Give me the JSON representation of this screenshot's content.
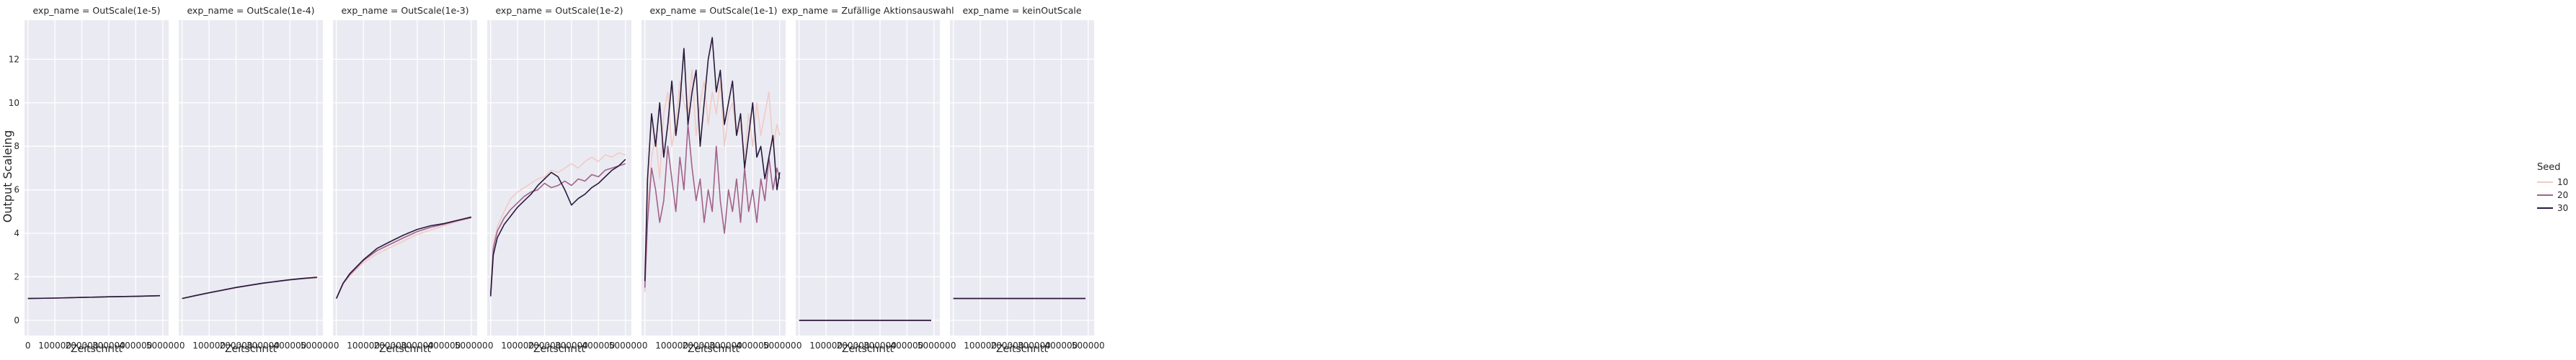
{
  "chart_data": {
    "type": "line",
    "ylabel": "Output Scaleing",
    "xlabel": "Zeitschritt",
    "xlim": [
      -12500,
      522000
    ],
    "ylim": [
      -0.7,
      13.8
    ],
    "x_ticks": [
      0,
      100000,
      200000,
      300000,
      400000,
      500000
    ],
    "x_tick_labels": [
      "0",
      "100000",
      "200000",
      "300000",
      "400000",
      "500000"
    ],
    "y_ticks": [
      0,
      2,
      4,
      6,
      8,
      10,
      12
    ],
    "y_tick_labels": [
      "0",
      "2",
      "4",
      "6",
      "8",
      "10",
      "12"
    ],
    "grid": true,
    "legend": {
      "title": "Seed",
      "placement": "right",
      "entries": [
        {
          "label": "10",
          "color": "#f0cbc6"
        },
        {
          "label": "20",
          "color": "#a2628a"
        },
        {
          "label": "30",
          "color": "#2a1a3d"
        }
      ]
    },
    "panels": [
      {
        "title": "exp_name = OutScale(1e-5)",
        "series": [
          {
            "name": "10",
            "x": [
              0,
              100000,
              200000,
              300000,
              400000,
              490000
            ],
            "y": [
              1.0,
              1.02,
              1.05,
              1.08,
              1.1,
              1.13
            ]
          },
          {
            "name": "20",
            "x": [
              0,
              100000,
              200000,
              300000,
              400000,
              490000
            ],
            "y": [
              1.0,
              1.02,
              1.05,
              1.08,
              1.1,
              1.13
            ]
          },
          {
            "name": "30",
            "x": [
              0,
              100000,
              200000,
              300000,
              400000,
              490000
            ],
            "y": [
              1.0,
              1.02,
              1.05,
              1.08,
              1.1,
              1.13
            ]
          }
        ]
      },
      {
        "title": "exp_name = OutScale(1e-4)",
        "series": [
          {
            "name": "10",
            "x": [
              0,
              50000,
              100000,
              150000,
              200000,
              250000,
              300000,
              350000,
              400000,
              450000,
              500000
            ],
            "y": [
              1.0,
              1.13,
              1.26,
              1.38,
              1.5,
              1.6,
              1.7,
              1.78,
              1.86,
              1.92,
              1.96
            ]
          },
          {
            "name": "20",
            "x": [
              0,
              50000,
              100000,
              150000,
              200000,
              250000,
              300000,
              350000,
              400000,
              450000,
              500000
            ],
            "y": [
              1.0,
              1.13,
              1.26,
              1.38,
              1.5,
              1.6,
              1.7,
              1.78,
              1.86,
              1.92,
              1.96
            ]
          },
          {
            "name": "30",
            "x": [
              0,
              50000,
              100000,
              150000,
              200000,
              250000,
              300000,
              350000,
              400000,
              450000,
              500000
            ],
            "y": [
              1.0,
              1.14,
              1.27,
              1.39,
              1.51,
              1.61,
              1.71,
              1.79,
              1.87,
              1.93,
              1.98
            ]
          }
        ]
      },
      {
        "title": "exp_name = OutScale(1e-3)",
        "series": [
          {
            "name": "10",
            "x": [
              0,
              25000,
              50000,
              100000,
              150000,
              200000,
              250000,
              300000,
              350000,
              400000,
              450000,
              500000
            ],
            "y": [
              1.0,
              1.65,
              2.05,
              2.65,
              3.05,
              3.35,
              3.65,
              3.95,
              4.15,
              4.35,
              4.55,
              4.72
            ]
          },
          {
            "name": "20",
            "x": [
              0,
              25000,
              50000,
              100000,
              150000,
              200000,
              250000,
              300000,
              350000,
              400000,
              450000,
              500000
            ],
            "y": [
              1.0,
              1.7,
              2.1,
              2.75,
              3.2,
              3.5,
              3.8,
              4.08,
              4.28,
              4.42,
              4.58,
              4.72
            ]
          },
          {
            "name": "30",
            "x": [
              0,
              25000,
              50000,
              100000,
              150000,
              200000,
              250000,
              300000,
              350000,
              400000,
              450000,
              500000
            ],
            "y": [
              1.0,
              1.7,
              2.15,
              2.78,
              3.3,
              3.62,
              3.92,
              4.18,
              4.35,
              4.45,
              4.6,
              4.75
            ]
          }
        ]
      },
      {
        "title": "exp_name = OutScale(1e-2)",
        "series": [
          {
            "name": "10",
            "x": [
              0,
              10000,
              25000,
              50000,
              75000,
              100000,
              125000,
              150000,
              175000,
              200000,
              225000,
              250000,
              275000,
              300000,
              325000,
              350000,
              375000,
              400000,
              425000,
              450000,
              475000,
              500000
            ],
            "y": [
              1.2,
              3.5,
              4.3,
              5.0,
              5.6,
              5.9,
              6.1,
              6.3,
              6.5,
              6.6,
              6.9,
              6.8,
              7.0,
              7.2,
              7.0,
              7.3,
              7.5,
              7.3,
              7.6,
              7.5,
              7.7,
              7.6
            ]
          },
          {
            "name": "20",
            "x": [
              0,
              10000,
              25000,
              50000,
              75000,
              100000,
              125000,
              150000,
              175000,
              200000,
              225000,
              250000,
              275000,
              300000,
              325000,
              350000,
              375000,
              400000,
              425000,
              450000,
              475000,
              500000
            ],
            "y": [
              1.2,
              3.3,
              4.1,
              4.7,
              5.1,
              5.4,
              5.7,
              5.9,
              6.0,
              6.3,
              6.1,
              6.2,
              6.4,
              6.2,
              6.5,
              6.4,
              6.7,
              6.6,
              6.9,
              7.0,
              7.1,
              7.2
            ]
          },
          {
            "name": "30",
            "x": [
              0,
              10000,
              25000,
              50000,
              75000,
              100000,
              125000,
              150000,
              175000,
              200000,
              225000,
              250000,
              275000,
              300000,
              325000,
              350000,
              375000,
              400000,
              425000,
              450000,
              475000,
              500000
            ],
            "y": [
              1.1,
              3.0,
              3.8,
              4.4,
              4.8,
              5.2,
              5.5,
              5.8,
              6.2,
              6.5,
              6.8,
              6.6,
              6.0,
              5.3,
              5.6,
              5.8,
              6.1,
              6.3,
              6.6,
              6.9,
              7.1,
              7.4
            ]
          }
        ]
      },
      {
        "title": "exp_name = OutScale(1e-1)",
        "series": [
          {
            "name": "10",
            "x": [
              0,
              10000,
              25000,
              40000,
              55000,
              70000,
              85000,
              100000,
              115000,
              130000,
              145000,
              160000,
              175000,
              190000,
              205000,
              220000,
              235000,
              250000,
              265000,
              280000,
              295000,
              310000,
              325000,
              340000,
              355000,
              370000,
              385000,
              400000,
              415000,
              430000,
              445000,
              460000,
              475000,
              490000,
              500000
            ],
            "y": [
              1.3,
              5.0,
              7.5,
              8.5,
              6.5,
              9.5,
              10.5,
              8.0,
              9.0,
              11.0,
              10.0,
              9.5,
              11.5,
              8.5,
              10.0,
              11.0,
              9.0,
              10.5,
              9.5,
              11.0,
              8.0,
              9.5,
              10.0,
              8.5,
              9.0,
              7.5,
              9.5,
              8.0,
              10.0,
              8.5,
              9.5,
              10.5,
              8.0,
              9.0,
              8.5
            ]
          },
          {
            "name": "20",
            "x": [
              0,
              10000,
              25000,
              40000,
              55000,
              70000,
              85000,
              100000,
              115000,
              130000,
              145000,
              160000,
              175000,
              190000,
              205000,
              220000,
              235000,
              250000,
              265000,
              280000,
              295000,
              310000,
              325000,
              340000,
              355000,
              370000,
              385000,
              400000,
              415000,
              430000,
              445000,
              460000,
              475000,
              490000,
              500000
            ],
            "y": [
              1.5,
              4.5,
              7.0,
              6.0,
              4.5,
              5.5,
              8.0,
              6.5,
              5.0,
              7.5,
              6.0,
              9.0,
              7.0,
              5.5,
              6.5,
              4.5,
              6.0,
              5.0,
              8.0,
              5.5,
              4.0,
              6.0,
              5.0,
              6.5,
              4.5,
              7.0,
              5.0,
              6.0,
              4.5,
              6.5,
              5.5,
              7.5,
              6.0,
              7.0,
              6.5
            ]
          },
          {
            "name": "30",
            "x": [
              0,
              10000,
              25000,
              40000,
              55000,
              70000,
              85000,
              100000,
              115000,
              130000,
              145000,
              160000,
              175000,
              190000,
              205000,
              220000,
              235000,
              250000,
              265000,
              280000,
              295000,
              310000,
              325000,
              340000,
              355000,
              370000,
              385000,
              400000,
              415000,
              430000,
              445000,
              460000,
              475000,
              490000,
              500000
            ],
            "y": [
              1.8,
              6.5,
              9.5,
              8.0,
              10.0,
              7.5,
              9.0,
              11.0,
              8.5,
              10.0,
              12.5,
              9.0,
              10.5,
              11.5,
              8.0,
              10.0,
              12.0,
              13.0,
              10.5,
              11.5,
              9.0,
              10.0,
              11.0,
              8.5,
              9.5,
              7.0,
              8.5,
              10.0,
              7.5,
              8.0,
              6.5,
              7.5,
              8.5,
              6.0,
              6.8
            ]
          }
        ]
      },
      {
        "title": "exp_name = Zufällige Aktionsauswahl",
        "series": [
          {
            "name": "10",
            "x": [
              0,
              490000
            ],
            "y": [
              0.0,
              0.0
            ]
          },
          {
            "name": "20",
            "x": [
              0,
              490000
            ],
            "y": [
              0.0,
              0.0
            ]
          },
          {
            "name": "30",
            "x": [
              0,
              490000
            ],
            "y": [
              0.0,
              0.0
            ]
          }
        ]
      },
      {
        "title": "exp_name = keinOutScale",
        "series": [
          {
            "name": "10",
            "x": [
              0,
              490000
            ],
            "y": [
              1.0,
              1.0
            ]
          },
          {
            "name": "20",
            "x": [
              0,
              490000
            ],
            "y": [
              1.0,
              1.0
            ]
          },
          {
            "name": "30",
            "x": [
              0,
              490000
            ],
            "y": [
              1.0,
              1.0
            ]
          }
        ]
      }
    ]
  }
}
